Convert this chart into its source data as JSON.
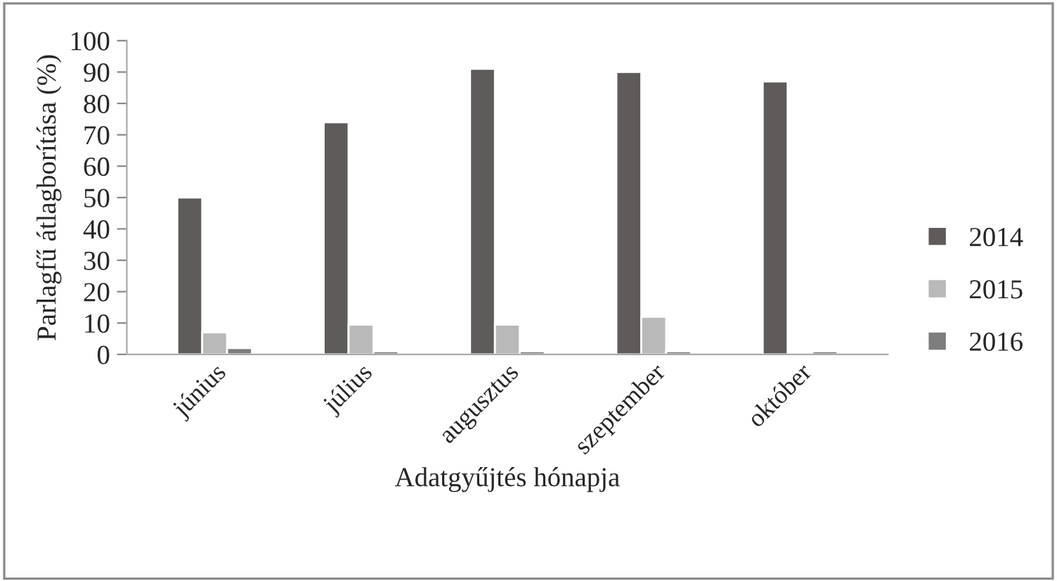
{
  "chart_data": {
    "type": "bar",
    "xlabel": "Adatgyűjtés hónapja",
    "ylabel": "Parlagfű átlagborítása (%)",
    "categories": [
      "június",
      "július",
      "augusztus",
      "szeptember",
      "október"
    ],
    "series": [
      {
        "name": "2014",
        "color": "#5f5b5b",
        "values": [
          50,
          74,
          91,
          90,
          87
        ]
      },
      {
        "name": "2015",
        "color": "#b9b9b9",
        "values": [
          7,
          9.5,
          9.5,
          12,
          null
        ]
      },
      {
        "name": "2016",
        "color": "#7d7d7d",
        "values": [
          2,
          1,
          1,
          1,
          1
        ]
      }
    ],
    "ylim": [
      0,
      100
    ],
    "yticks": [
      0,
      10,
      20,
      30,
      40,
      50,
      60,
      70,
      80,
      90,
      100
    ],
    "grid": false,
    "legend": "right"
  }
}
